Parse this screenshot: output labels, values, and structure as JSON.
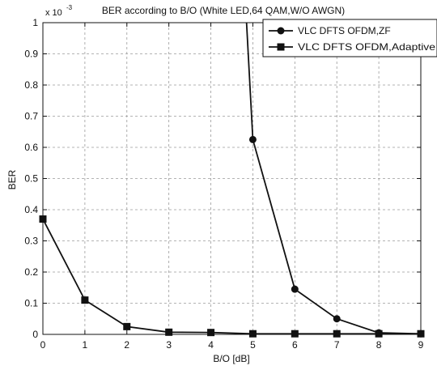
{
  "chart_data": {
    "type": "line",
    "title": "BER according to B/O (White LED,64 QAM,W/O AWGN)",
    "xlabel": "B/O [dB]",
    "ylabel": "BER",
    "y_exponent_label": "x 10",
    "y_exponent_power": "-3",
    "x": [
      0,
      1,
      2,
      3,
      4,
      5,
      6,
      7,
      8,
      9
    ],
    "xlim": [
      0,
      9
    ],
    "ylim": [
      0,
      1
    ],
    "x_ticks": [
      "0",
      "1",
      "2",
      "3",
      "4",
      "5",
      "6",
      "7",
      "8",
      "9"
    ],
    "y_ticks": [
      "0",
      "0.1",
      "0.2",
      "0.3",
      "0.4",
      "0.5",
      "0.6",
      "0.7",
      "0.8",
      "0.9",
      "1"
    ],
    "grid": true,
    "legend_position": "top-right",
    "series": [
      {
        "name": "VLC DFTS OFDM,ZF",
        "marker": "circle",
        "x": [
          5,
          6,
          7,
          8,
          9
        ],
        "values": [
          0.625,
          0.145,
          0.05,
          0.005,
          0.002
        ],
        "enters_from_above": 4.85
      },
      {
        "name": "VLC DFTS OFDM,Adaptive",
        "marker": "square",
        "x": [
          0,
          1,
          2,
          3,
          4,
          5,
          6,
          7,
          8,
          9
        ],
        "values": [
          0.37,
          0.11,
          0.025,
          0.007,
          0.006,
          0.002,
          0.002,
          0.002,
          0.002,
          0.002
        ]
      }
    ]
  }
}
